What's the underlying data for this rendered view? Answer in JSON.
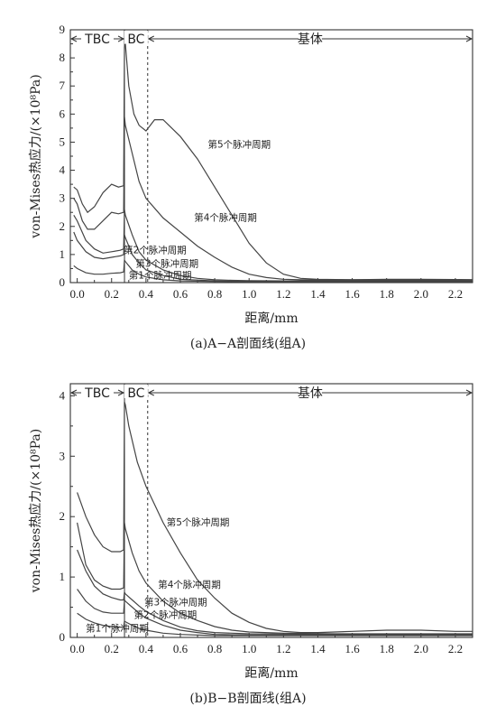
{
  "chart_data": [
    {
      "type": "line",
      "caption": "(a)A−A剖面线(组A)",
      "xlabel": "距离/mm",
      "ylabel": "von-Mises热应力/(×10⁸Pa)",
      "xlim": [
        -0.04,
        2.3
      ],
      "ylim": [
        0,
        9
      ],
      "xticks": [
        "0.0",
        "0.2",
        "0.4",
        "0.6",
        "0.8",
        "1.0",
        "1.2",
        "1.4",
        "1.6",
        "1.8",
        "2.0",
        "2.2"
      ],
      "yticks": [
        "0",
        "1",
        "2",
        "3",
        "4",
        "5",
        "6",
        "7",
        "8",
        "9"
      ],
      "regions": [
        {
          "label": "TBC",
          "from": -0.04,
          "to": 0.275
        },
        {
          "label": "BC",
          "from": 0.275,
          "to": 0.41
        },
        {
          "label": "基体",
          "from": 0.41,
          "to": 2.3
        }
      ],
      "boundaries": [
        {
          "x": 0.275,
          "style": "solid"
        },
        {
          "x": 0.41,
          "style": "dashed"
        }
      ],
      "series": [
        {
          "name": "第5个脉冲周期",
          "x": [
            -0.02,
            0.0,
            0.03,
            0.06,
            0.1,
            0.15,
            0.2,
            0.24,
            0.27,
            0.275,
            0.28,
            0.3,
            0.33,
            0.36,
            0.4,
            0.45,
            0.5,
            0.6,
            0.7,
            0.8,
            0.9,
            1.0,
            1.1,
            1.2,
            1.3,
            1.4,
            1.6,
            1.8,
            2.0,
            2.2,
            2.3
          ],
          "y": [
            3.4,
            3.3,
            2.8,
            2.5,
            2.7,
            3.2,
            3.5,
            3.4,
            3.45,
            8.4,
            8.5,
            7.0,
            6.0,
            5.6,
            5.4,
            5.8,
            5.8,
            5.2,
            4.4,
            3.4,
            2.4,
            1.4,
            0.7,
            0.3,
            0.15,
            0.12,
            0.1,
            0.12,
            0.12,
            0.11,
            0.1
          ]
        },
        {
          "name": "第4个脉冲周期",
          "x": [
            -0.02,
            0.0,
            0.03,
            0.06,
            0.1,
            0.15,
            0.2,
            0.24,
            0.27,
            0.275,
            0.28,
            0.32,
            0.36,
            0.4,
            0.5,
            0.6,
            0.7,
            0.8,
            0.9,
            1.0,
            1.1,
            1.2,
            1.3,
            1.4,
            1.6,
            1.8,
            2.0,
            2.2,
            2.3
          ],
          "y": [
            3.0,
            2.8,
            2.2,
            1.9,
            1.9,
            2.2,
            2.5,
            2.45,
            2.5,
            5.9,
            5.6,
            4.6,
            3.6,
            3.0,
            2.3,
            1.8,
            1.3,
            0.9,
            0.55,
            0.3,
            0.18,
            0.12,
            0.1,
            0.1,
            0.1,
            0.1,
            0.1,
            0.1,
            0.1
          ]
        },
        {
          "name": "第3个脉冲周期",
          "x": [
            -0.02,
            0.0,
            0.05,
            0.1,
            0.15,
            0.2,
            0.25,
            0.27,
            0.275,
            0.28,
            0.32,
            0.36,
            0.4,
            0.5,
            0.6,
            0.7,
            0.8,
            0.9,
            1.0,
            1.2,
            1.5,
            2.0,
            2.3
          ],
          "y": [
            2.4,
            2.2,
            1.5,
            1.2,
            1.05,
            1.1,
            1.15,
            1.2,
            2.6,
            2.4,
            1.7,
            1.1,
            0.8,
            0.45,
            0.25,
            0.15,
            0.1,
            0.08,
            0.07,
            0.06,
            0.06,
            0.06,
            0.06
          ]
        },
        {
          "name": "第2个脉冲周期",
          "x": [
            -0.02,
            0.0,
            0.05,
            0.1,
            0.15,
            0.2,
            0.25,
            0.27,
            0.275,
            0.28,
            0.32,
            0.36,
            0.4,
            0.5,
            0.6,
            0.8,
            1.0,
            1.5,
            2.0,
            2.3
          ],
          "y": [
            1.8,
            1.5,
            1.1,
            0.9,
            0.85,
            0.9,
            0.95,
            1.0,
            1.7,
            1.6,
            1.0,
            0.7,
            0.45,
            0.25,
            0.12,
            0.06,
            0.05,
            0.05,
            0.05,
            0.05
          ]
        },
        {
          "name": "第1个脉冲周期",
          "x": [
            -0.02,
            0.0,
            0.05,
            0.1,
            0.15,
            0.2,
            0.25,
            0.27,
            0.275,
            0.28,
            0.32,
            0.36,
            0.4,
            0.5,
            0.6,
            0.8,
            1.0,
            1.5,
            2.0,
            2.3
          ],
          "y": [
            0.6,
            0.5,
            0.35,
            0.3,
            0.3,
            0.33,
            0.35,
            0.38,
            0.8,
            0.75,
            0.45,
            0.3,
            0.2,
            0.1,
            0.06,
            0.04,
            0.03,
            0.03,
            0.03,
            0.03
          ]
        }
      ],
      "annotations": [
        {
          "text": "第5个脉冲周期",
          "series": 0,
          "at": [
            0.76,
            4.8
          ]
        },
        {
          "text": "第4个脉冲周期",
          "series": 1,
          "at": [
            0.68,
            2.2
          ]
        },
        {
          "text": "第2个脉冲周期",
          "series": 3,
          "at": [
            0.27,
            1.05
          ]
        },
        {
          "text": "第3个脉冲周期",
          "series": 2,
          "at": [
            0.34,
            0.57
          ]
        },
        {
          "text": "第1个脉冲周期",
          "series": 4,
          "at": [
            0.3,
            0.15
          ]
        }
      ]
    },
    {
      "type": "line",
      "caption": "(b)B−B剖面线(组A)",
      "xlabel": "距离/mm",
      "ylabel": "von-Mises热应力/(×10⁸Pa)",
      "xlim": [
        -0.04,
        2.3
      ],
      "ylim": [
        0,
        4.2
      ],
      "xticks": [
        "0.0",
        "0.2",
        "0.4",
        "0.6",
        "0.8",
        "1.0",
        "1.2",
        "1.4",
        "1.6",
        "1.8",
        "2.0",
        "2.2"
      ],
      "yticks": [
        "0",
        "1",
        "2",
        "3",
        "4"
      ],
      "regions": [
        {
          "label": "TBC",
          "from": -0.04,
          "to": 0.275
        },
        {
          "label": "BC",
          "from": 0.275,
          "to": 0.41
        },
        {
          "label": "基体",
          "from": 0.41,
          "to": 2.3
        }
      ],
      "boundaries": [
        {
          "x": 0.275,
          "style": "solid"
        },
        {
          "x": 0.41,
          "style": "dashed"
        }
      ],
      "series": [
        {
          "name": "第5个脉冲周期",
          "x": [
            0.0,
            0.05,
            0.1,
            0.15,
            0.2,
            0.25,
            0.27,
            0.275,
            0.28,
            0.3,
            0.35,
            0.4,
            0.45,
            0.5,
            0.6,
            0.7,
            0.8,
            0.9,
            1.0,
            1.1,
            1.2,
            1.3,
            1.4,
            1.6,
            1.8,
            2.0,
            2.2,
            2.3
          ],
          "y": [
            2.4,
            2.0,
            1.7,
            1.5,
            1.42,
            1.42,
            1.45,
            3.9,
            3.85,
            3.5,
            2.9,
            2.5,
            2.2,
            1.9,
            1.4,
            0.95,
            0.65,
            0.4,
            0.25,
            0.15,
            0.1,
            0.08,
            0.08,
            0.1,
            0.12,
            0.12,
            0.1,
            0.1
          ]
        },
        {
          "name": "第4个脉冲周期",
          "x": [
            0.0,
            0.05,
            0.1,
            0.15,
            0.2,
            0.25,
            0.27,
            0.275,
            0.28,
            0.32,
            0.36,
            0.4,
            0.5,
            0.6,
            0.7,
            0.8,
            0.9,
            1.0,
            1.2,
            1.5,
            2.0,
            2.3
          ],
          "y": [
            1.9,
            1.2,
            0.95,
            0.85,
            0.8,
            0.8,
            0.82,
            1.9,
            1.8,
            1.4,
            1.1,
            0.9,
            0.6,
            0.4,
            0.28,
            0.18,
            0.12,
            0.09,
            0.07,
            0.06,
            0.06,
            0.06
          ]
        },
        {
          "name": "第3个脉冲周期",
          "x": [
            0.0,
            0.05,
            0.1,
            0.15,
            0.2,
            0.25,
            0.27,
            0.275,
            0.28,
            0.32,
            0.36,
            0.4,
            0.5,
            0.6,
            0.7,
            0.8,
            1.0,
            1.5,
            2.0,
            2.3
          ],
          "y": [
            1.45,
            1.1,
            0.85,
            0.72,
            0.66,
            0.62,
            0.62,
            0.75,
            0.72,
            0.62,
            0.52,
            0.43,
            0.28,
            0.17,
            0.11,
            0.08,
            0.06,
            0.05,
            0.05,
            0.05
          ]
        },
        {
          "name": "第2个脉冲周期",
          "x": [
            0.0,
            0.05,
            0.1,
            0.15,
            0.2,
            0.25,
            0.27,
            0.275,
            0.28,
            0.32,
            0.36,
            0.4,
            0.5,
            0.6,
            0.7,
            0.8,
            1.0,
            1.5,
            2.0,
            2.3
          ],
          "y": [
            0.8,
            0.6,
            0.48,
            0.42,
            0.4,
            0.4,
            0.4,
            0.62,
            0.6,
            0.5,
            0.4,
            0.32,
            0.2,
            0.12,
            0.08,
            0.05,
            0.04,
            0.04,
            0.04,
            0.04
          ]
        },
        {
          "name": "第1个脉冲周期",
          "x": [
            0.0,
            0.05,
            0.1,
            0.15,
            0.2,
            0.25,
            0.27,
            0.275,
            0.28,
            0.32,
            0.36,
            0.4,
            0.5,
            0.6,
            0.8,
            1.0,
            1.5,
            2.0,
            2.3
          ],
          "y": [
            0.4,
            0.3,
            0.24,
            0.2,
            0.18,
            0.17,
            0.17,
            0.27,
            0.26,
            0.2,
            0.15,
            0.12,
            0.07,
            0.05,
            0.03,
            0.03,
            0.03,
            0.03,
            0.03
          ]
        }
      ],
      "annotations": [
        {
          "text": "第5个脉冲周期",
          "series": 0,
          "at": [
            0.52,
            1.85
          ]
        },
        {
          "text": "第4个脉冲周期",
          "series": 1,
          "at": [
            0.47,
            0.82
          ]
        },
        {
          "text": "第3个脉冲周期",
          "series": 2,
          "at": [
            0.39,
            0.53
          ]
        },
        {
          "text": "第2个脉冲周期",
          "series": 3,
          "at": [
            0.33,
            0.32
          ]
        },
        {
          "text": "第1个脉冲周期",
          "series": 4,
          "at": [
            0.05,
            0.1
          ]
        }
      ]
    }
  ]
}
